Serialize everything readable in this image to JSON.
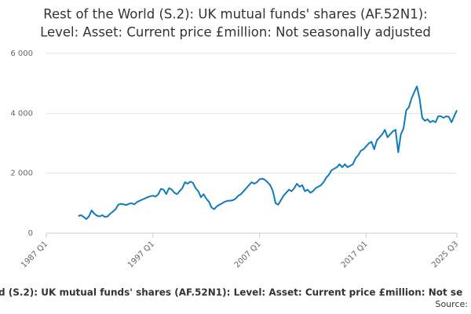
{
  "chart_data": {
    "type": "line",
    "title_lines": [
      "Rest of the World (S.2): UK mutual funds' shares (AF.52N1):",
      "Level: Asset: Current price £million: Not seasonally adjusted"
    ],
    "caption": "d (S.2): UK mutual funds' shares (AF.52N1): Level: Asset: Current price £million: Not se",
    "source": "Source:",
    "color": "#0f7bbd",
    "grid": true,
    "xlim": [
      1987,
      2025.5
    ],
    "xticks": [
      {
        "value": 1987,
        "label": "1987 Q1"
      },
      {
        "value": 1997,
        "label": "1997 Q1"
      },
      {
        "value": 2007,
        "label": "2007 Q1"
      },
      {
        "value": 2017,
        "label": "2017 Q1"
      },
      {
        "value": 2025.5,
        "label": "2025 Q3"
      }
    ],
    "ylim": [
      0,
      6000
    ],
    "yticks": [
      0,
      {
        "value": 2000,
        "label": "2 000"
      },
      {
        "value": 4000,
        "label": "4 000"
      },
      {
        "value": 6000,
        "label": "6 000"
      }
    ],
    "x": [
      1990,
      1990.25,
      1990.5,
      1990.75,
      1991,
      1991.25,
      1991.5,
      1991.75,
      1992,
      1992.25,
      1992.5,
      1992.75,
      1993,
      1993.25,
      1993.5,
      1993.75,
      1994,
      1994.25,
      1994.5,
      1994.75,
      1995,
      1995.25,
      1995.5,
      1995.75,
      1996,
      1996.25,
      1996.5,
      1996.75,
      1997,
      1997.25,
      1997.5,
      1997.75,
      1998,
      1998.25,
      1998.5,
      1998.75,
      1999,
      1999.25,
      1999.5,
      1999.75,
      2000,
      2000.25,
      2000.5,
      2000.75,
      2001,
      2001.25,
      2001.5,
      2001.75,
      2002,
      2002.25,
      2002.5,
      2002.75,
      2003,
      2003.25,
      2003.5,
      2003.75,
      2004,
      2004.25,
      2004.5,
      2004.75,
      2005,
      2005.25,
      2005.5,
      2005.75,
      2006,
      2006.25,
      2006.5,
      2006.75,
      2007,
      2007.25,
      2007.5,
      2007.75,
      2008,
      2008.25,
      2008.5,
      2008.75,
      2009,
      2009.25,
      2009.5,
      2009.75,
      2010,
      2010.25,
      2010.5,
      2010.75,
      2011,
      2011.25,
      2011.5,
      2011.75,
      2012,
      2012.25,
      2012.5,
      2012.75,
      2013,
      2013.25,
      2013.5,
      2013.75,
      2014,
      2014.25,
      2014.5,
      2014.75,
      2015,
      2015.25,
      2015.5,
      2015.75,
      2016,
      2016.25,
      2016.5,
      2016.75,
      2017,
      2017.25,
      2017.5,
      2017.75,
      2018,
      2018.25,
      2018.5,
      2018.75,
      2019,
      2019.25,
      2019.5,
      2019.75,
      2020,
      2020.25,
      2020.5,
      2020.75,
      2021,
      2021.25,
      2021.5,
      2021.75,
      2022,
      2022.25,
      2022.5,
      2022.75,
      2023,
      2023.25,
      2023.5,
      2023.75,
      2024,
      2024.25,
      2024.5,
      2024.75,
      2025,
      2025.25,
      2025.5
    ],
    "values": [
      570,
      600,
      540,
      470,
      560,
      760,
      650,
      580,
      560,
      600,
      540,
      560,
      650,
      720,
      800,
      950,
      980,
      960,
      940,
      980,
      1000,
      960,
      1040,
      1080,
      1120,
      1160,
      1200,
      1230,
      1250,
      1220,
      1300,
      1480,
      1450,
      1300,
      1500,
      1460,
      1350,
      1300,
      1400,
      1500,
      1700,
      1650,
      1720,
      1680,
      1500,
      1400,
      1200,
      1300,
      1150,
      1050,
      850,
      800,
      900,
      950,
      1000,
      1050,
      1080,
      1080,
      1100,
      1150,
      1250,
      1300,
      1400,
      1500,
      1600,
      1700,
      1650,
      1700,
      1800,
      1820,
      1780,
      1700,
      1600,
      1400,
      1000,
      950,
      1100,
      1250,
      1350,
      1450,
      1400,
      1500,
      1650,
      1550,
      1600,
      1400,
      1450,
      1350,
      1400,
      1500,
      1550,
      1600,
      1700,
      1850,
      1950,
      2100,
      2150,
      2200,
      2300,
      2200,
      2300,
      2200,
      2250,
      2300,
      2500,
      2600,
      2750,
      2800,
      2900,
      3000,
      3050,
      2800,
      3100,
      3200,
      3300,
      3450,
      3200,
      3300,
      3400,
      3450,
      2700,
      3300,
      3500,
      4100,
      4200,
      4500,
      4700,
      4900,
      4500,
      3850,
      3750,
      3800,
      3700,
      3750,
      3700,
      3900,
      3900,
      3850,
      3900,
      3880,
      3700,
      3900,
      4100
    ]
  }
}
